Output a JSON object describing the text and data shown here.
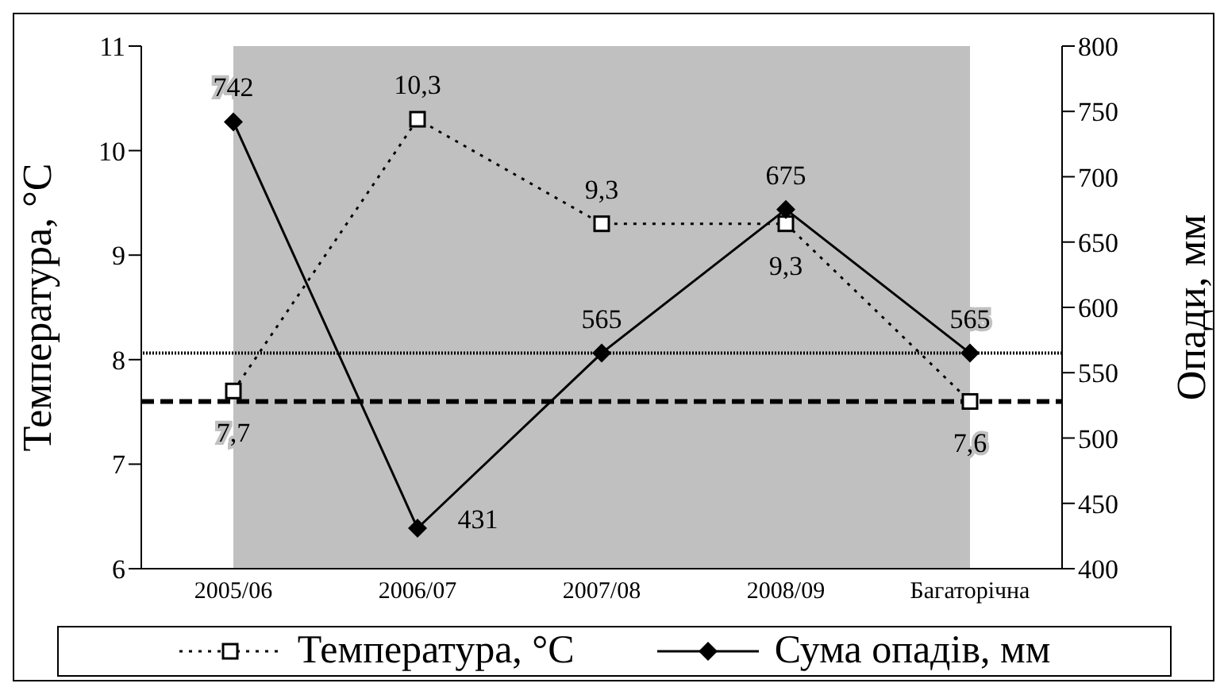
{
  "chart_data": {
    "type": "line",
    "ylabel": "Температура, °C",
    "y2label": "Опади, мм",
    "categories": [
      "2005/06",
      "2006/07",
      "2007/08",
      "2008/09",
      "Багаторічна"
    ],
    "series": [
      {
        "name": "Температура, °C",
        "color": "#000000",
        "values": [
          7.7,
          10.3,
          9.3,
          9.3,
          7.6
        ],
        "marker": "square",
        "line_style": "dotted",
        "value_labels": [
          "7,7",
          "10,3",
          "9,3",
          "9,3",
          "7,6"
        ]
      },
      {
        "name": "Сума опадів, мм",
        "color": "#000000",
        "values": [
          742,
          431,
          565,
          675,
          565
        ],
        "marker": "diamond",
        "line_style": "solid",
        "axis": "y2",
        "value_labels": [
          "742",
          "431",
          "565",
          "675",
          "565"
        ]
      }
    ],
    "ylim": [
      6,
      11
    ],
    "yticks": [
      6,
      7,
      8,
      9,
      10,
      11
    ],
    "y2lim": [
      400,
      800
    ],
    "y2ticks": [
      400,
      450,
      500,
      550,
      600,
      650,
      700,
      750,
      800
    ],
    "ref_lines": [
      {
        "axis": "y",
        "value": 7.6,
        "line_style": "dashed",
        "color": "#000000"
      },
      {
        "axis": "y2",
        "value": 565,
        "line_style": "dotted",
        "color": "#000000"
      }
    ],
    "grid": false,
    "legend": "bottom"
  }
}
